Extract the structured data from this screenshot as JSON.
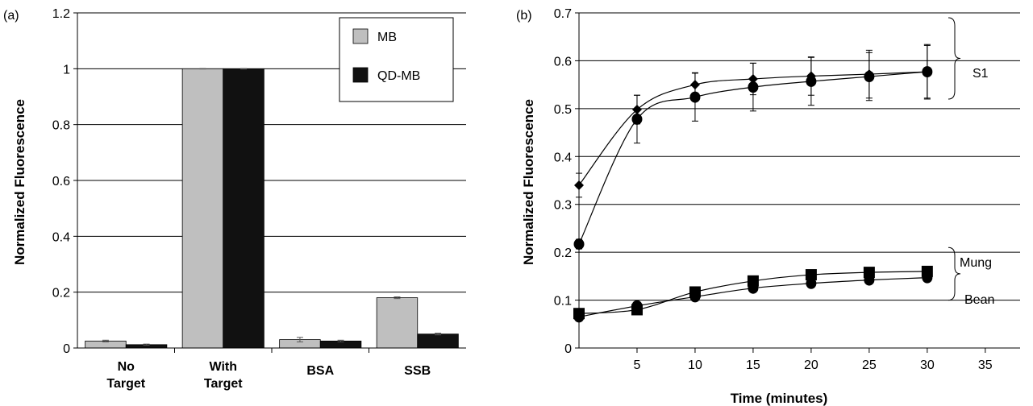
{
  "chart_data": [
    {
      "type": "bar",
      "panel_label": "(a)",
      "ylabel": "Normalized Fluorescence",
      "xlabel": "",
      "ylim": [
        0,
        1.2
      ],
      "yticks": [
        "0",
        "0.2",
        "0.4",
        "0.6",
        "0.8",
        "1",
        "1.2"
      ],
      "categories": [
        [
          "No",
          "Target"
        ],
        [
          "With",
          "Target"
        ],
        [
          "BSA"
        ],
        [
          "SSB"
        ]
      ],
      "series": [
        {
          "name": "MB",
          "color": "#bfbfbf",
          "values": [
            0.025,
            1.0,
            0.03,
            0.18
          ],
          "errors": [
            0.003,
            0.001,
            0.008,
            0.003
          ]
        },
        {
          "name": "QD-MB",
          "color": "#111111",
          "values": [
            0.012,
            1.0,
            0.025,
            0.05
          ],
          "errors": [
            0.002,
            0.001,
            0.003,
            0.003
          ]
        }
      ],
      "legend_position": "top-right",
      "grid": "horizontal"
    },
    {
      "type": "line",
      "panel_label": "(b)",
      "ylabel": "Normalized Fluorescence",
      "xlabel": "Time (minutes)",
      "xlim": [
        0,
        38
      ],
      "ylim": [
        0,
        0.7
      ],
      "xticks": [
        "5",
        "10",
        "15",
        "20",
        "25",
        "30",
        "35"
      ],
      "yticks": [
        "0",
        "0.1",
        "0.2",
        "0.3",
        "0.4",
        "0.5",
        "0.6",
        "0.7"
      ],
      "series": [
        {
          "marker": "diamond",
          "group": "S1",
          "x": [
            0,
            5,
            10,
            15,
            20,
            25,
            30
          ],
          "y": [
            0.34,
            0.498,
            0.55,
            0.562,
            0.568,
            0.572,
            0.577
          ],
          "err": [
            0.025,
            0.03,
            0.025,
            0.033,
            0.04,
            0.05,
            0.057
          ]
        },
        {
          "marker": "circle",
          "group": "S1",
          "x": [
            0,
            5,
            10,
            15,
            20,
            25,
            30
          ],
          "y": [
            0.217,
            0.478,
            0.524,
            0.545,
            0.557,
            0.567,
            0.577
          ],
          "err": [
            0.01,
            0.05,
            0.05,
            0.05,
            0.05,
            0.05,
            0.055
          ]
        },
        {
          "marker": "square",
          "group": "Mung Bean",
          "x": [
            0,
            5,
            10,
            15,
            20,
            25,
            30
          ],
          "y": [
            0.072,
            0.08,
            0.117,
            0.14,
            0.153,
            0.158,
            0.16
          ],
          "err": [
            0,
            0,
            0,
            0,
            0,
            0,
            0
          ]
        },
        {
          "marker": "circle",
          "group": "Mung Bean",
          "x": [
            0,
            5,
            10,
            15,
            20,
            25,
            30
          ],
          "y": [
            0.065,
            0.088,
            0.107,
            0.125,
            0.135,
            0.142,
            0.147
          ],
          "err": [
            0,
            0,
            0,
            0,
            0,
            0,
            0
          ]
        }
      ],
      "annotations": [
        {
          "text": "S1",
          "y_range": [
            0.52,
            0.69
          ]
        },
        {
          "text": "Mung",
          "y_range": [
            0.1,
            0.21
          ]
        },
        {
          "text": "Bean",
          "y_range": [
            0.1,
            0.21
          ]
        }
      ],
      "grid": "horizontal"
    }
  ]
}
